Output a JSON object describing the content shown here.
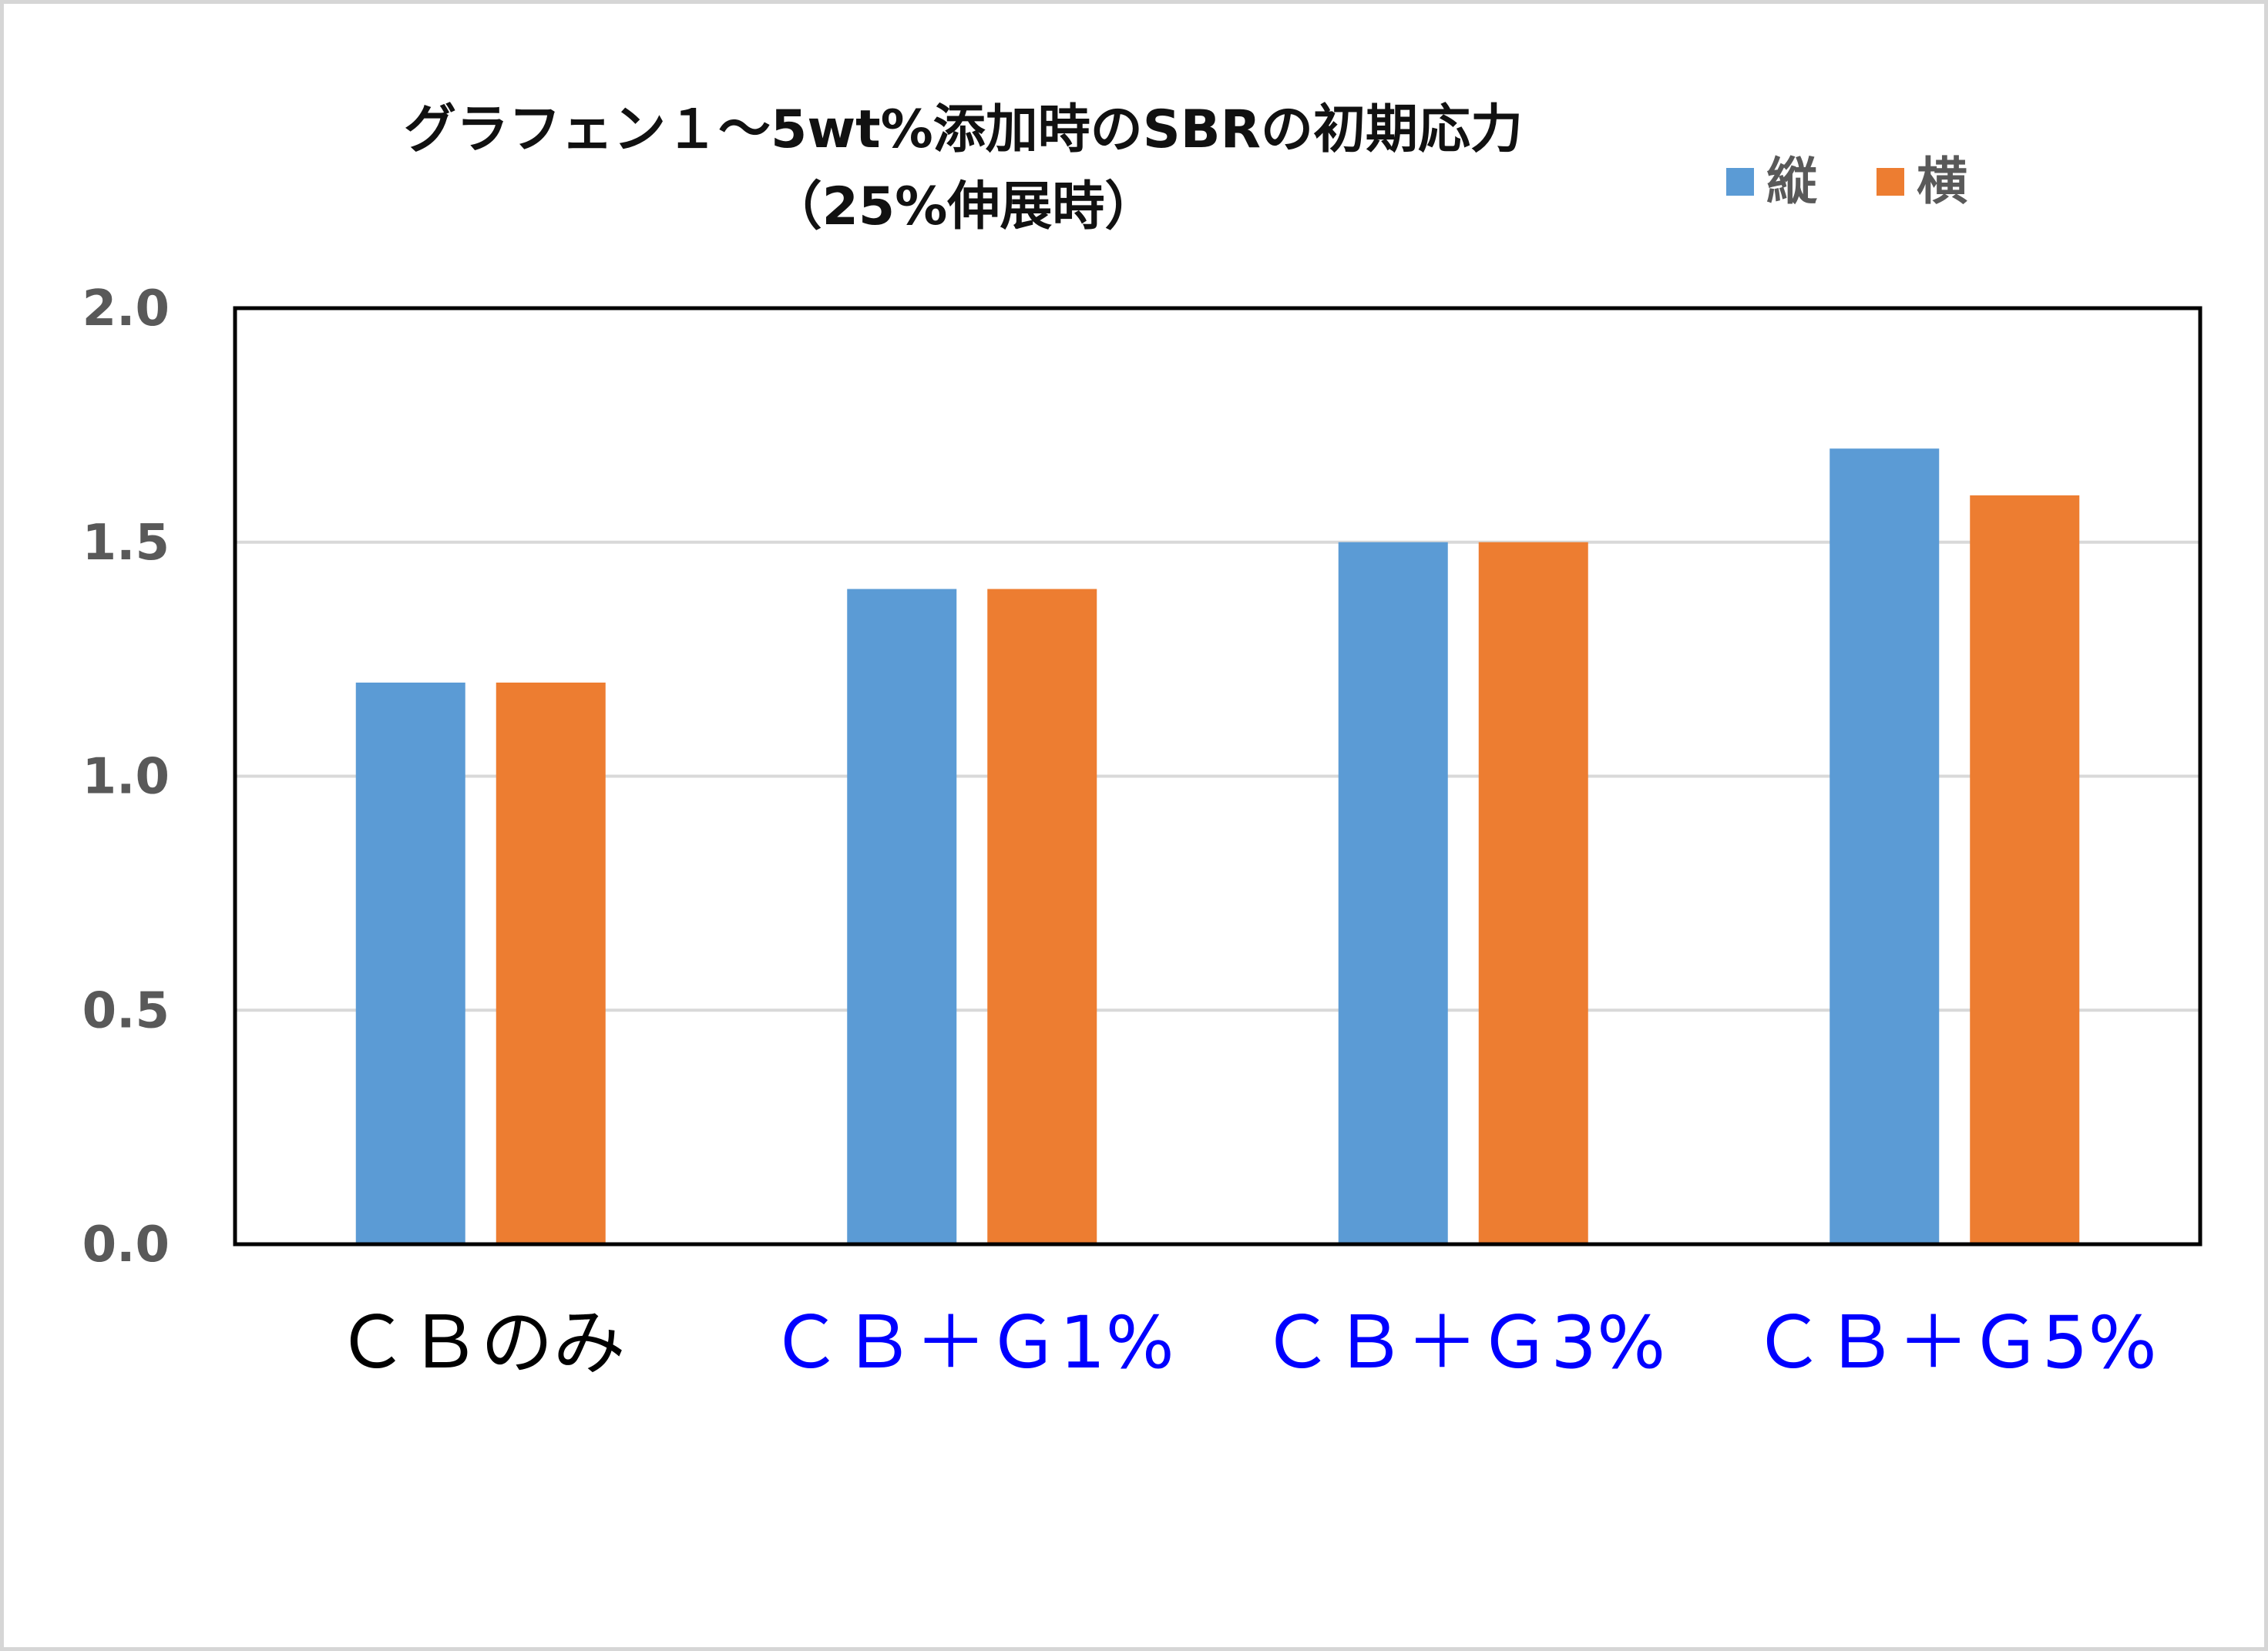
{
  "chart_data": {
    "type": "bar",
    "title": "グラフェン１～5wt%添加時のSBRの初期応力",
    "subtitle": "（25%伸展時）",
    "xlabel": "",
    "ylabel": "",
    "categories": [
      "ＣＢのみ",
      "ＣＢ＋Ｇ1%",
      "ＣＢ＋Ｇ3%",
      "ＣＢ＋Ｇ5%"
    ],
    "category_colors": [
      "#000000",
      "#0000ff",
      "#0000ff",
      "#0000ff"
    ],
    "series": [
      {
        "name": "縦",
        "color": "#5b9bd5",
        "values": [
          1.2,
          1.4,
          1.5,
          1.7
        ]
      },
      {
        "name": "横",
        "color": "#ed7d31",
        "values": [
          1.2,
          1.4,
          1.5,
          1.6
        ]
      }
    ],
    "ylim": [
      0,
      2.0
    ],
    "yticks": [
      "0.0",
      "0.5",
      "1.0",
      "1.5",
      "2.0"
    ],
    "ytick_values": [
      0,
      0.5,
      1.0,
      1.5,
      2.0
    ],
    "grid": true,
    "legend_position": "top-right"
  }
}
